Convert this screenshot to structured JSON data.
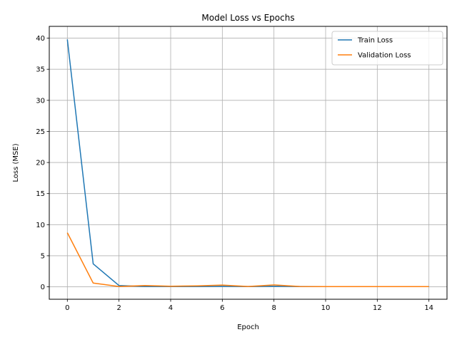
{
  "chart_data": {
    "type": "line",
    "title": "Model Loss vs Epochs",
    "xlabel": "Epoch",
    "ylabel": "Loss (MSE)",
    "xlim": [
      -0.7,
      14.7
    ],
    "ylim": [
      -2.0,
      41.9
    ],
    "xticks": [
      0,
      2,
      4,
      6,
      8,
      10,
      12,
      14
    ],
    "yticks": [
      0,
      5,
      10,
      15,
      20,
      25,
      30,
      35,
      40
    ],
    "grid": true,
    "legend_position": "upper-right",
    "x": [
      0,
      1,
      2,
      3,
      4,
      5,
      6,
      7,
      8,
      9,
      10,
      11,
      12,
      13,
      14
    ],
    "series": [
      {
        "name": "Train Loss",
        "color": "#1f77b4",
        "values": [
          39.8,
          3.7,
          0.2,
          0.05,
          0.05,
          0.05,
          0.08,
          0.05,
          0.1,
          0.05,
          0.03,
          0.03,
          0.03,
          0.03,
          0.03
        ]
      },
      {
        "name": "Validation Loss",
        "color": "#ff7f0e",
        "values": [
          8.7,
          0.6,
          0.05,
          0.2,
          0.1,
          0.15,
          0.28,
          0.05,
          0.3,
          0.05,
          0.03,
          0.03,
          0.03,
          0.03,
          0.03
        ]
      }
    ]
  }
}
